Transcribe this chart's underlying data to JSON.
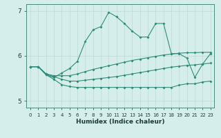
{
  "title": "",
  "xlabel": "Humidex (Indice chaleur)",
  "ylabel": "",
  "background_color": "#d5eeeb",
  "line_color": "#2e8b7a",
  "grid_color": "#c0ddd8",
  "xlim": [
    -0.5,
    23.5
  ],
  "ylim": [
    4.85,
    7.15
  ],
  "yticks": [
    5,
    6,
    7
  ],
  "xticks": [
    0,
    1,
    2,
    3,
    4,
    5,
    6,
    7,
    8,
    9,
    10,
    11,
    12,
    13,
    14,
    15,
    16,
    17,
    18,
    19,
    20,
    21,
    22,
    23
  ],
  "line1_x": [
    0,
    1,
    2,
    3,
    4,
    5,
    6,
    7,
    8,
    9,
    10,
    11,
    12,
    13,
    14,
    15,
    16,
    17,
    18,
    19,
    20,
    21,
    22,
    23
  ],
  "line1_y": [
    5.76,
    5.76,
    5.58,
    5.52,
    5.62,
    5.72,
    5.88,
    6.32,
    6.58,
    6.65,
    6.97,
    6.87,
    6.72,
    6.55,
    6.42,
    6.42,
    6.72,
    6.72,
    6.05,
    6.05,
    5.95,
    5.52,
    5.82,
    6.05
  ],
  "line2_x": [
    0,
    1,
    2,
    3,
    4,
    5,
    6,
    7,
    8,
    9,
    10,
    11,
    12,
    13,
    14,
    15,
    16,
    17,
    18,
    19,
    20,
    21,
    22,
    23
  ],
  "line2_y": [
    5.76,
    5.76,
    5.6,
    5.56,
    5.56,
    5.56,
    5.6,
    5.65,
    5.7,
    5.74,
    5.78,
    5.82,
    5.86,
    5.9,
    5.93,
    5.96,
    5.99,
    6.02,
    6.04,
    6.06,
    6.07,
    6.07,
    6.08,
    6.08
  ],
  "line3_x": [
    0,
    1,
    2,
    3,
    4,
    5,
    6,
    7,
    8,
    9,
    10,
    11,
    12,
    13,
    14,
    15,
    16,
    17,
    18,
    19,
    20,
    21,
    22,
    23
  ],
  "line3_y": [
    5.76,
    5.76,
    5.6,
    5.54,
    5.48,
    5.44,
    5.44,
    5.46,
    5.48,
    5.5,
    5.52,
    5.54,
    5.57,
    5.6,
    5.63,
    5.66,
    5.69,
    5.72,
    5.75,
    5.77,
    5.79,
    5.8,
    5.82,
    5.84
  ],
  "line4_x": [
    0,
    1,
    2,
    3,
    4,
    5,
    6,
    7,
    8,
    9,
    10,
    11,
    12,
    13,
    14,
    15,
    16,
    17,
    18,
    19,
    20,
    21,
    22,
    23
  ],
  "line4_y": [
    5.76,
    5.76,
    5.58,
    5.48,
    5.36,
    5.32,
    5.3,
    5.3,
    5.3,
    5.3,
    5.3,
    5.3,
    5.3,
    5.3,
    5.3,
    5.3,
    5.3,
    5.3,
    5.3,
    5.35,
    5.38,
    5.38,
    5.42,
    5.44
  ]
}
